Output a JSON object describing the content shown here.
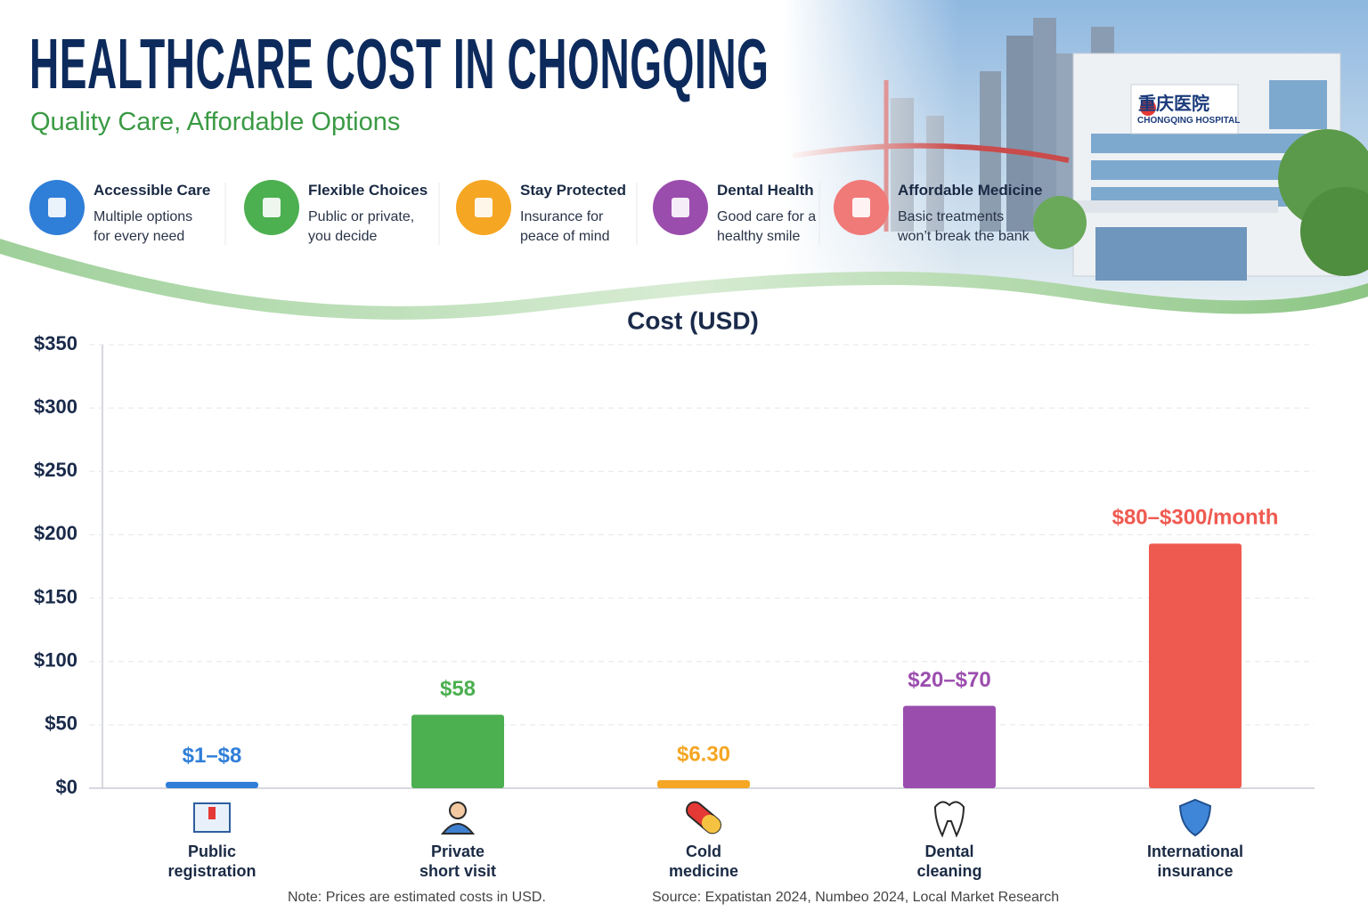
{
  "header": {
    "title": "HEALTHCARE COST IN CHONGQING",
    "subtitle": "Quality Care, Affordable Options"
  },
  "features": [
    {
      "title": "Accessible Care",
      "lines": [
        "Multiple options",
        "for every need"
      ]
    },
    {
      "title": "Flexible Choices",
      "lines": [
        "Public or private,",
        "you decide"
      ]
    },
    {
      "title": "Stay Protected",
      "lines": [
        "Insurance for",
        "peace of mind"
      ]
    },
    {
      "title": "Dental Health",
      "lines": [
        "Good care for a",
        "healthy smile"
      ]
    },
    {
      "title": "Affordable Medicine",
      "lines": [
        "Basic treatments",
        "won’t break the bank"
      ]
    }
  ],
  "illustration": {
    "sign": "重庆医院",
    "sign_subtitle": "CHONGQING HOSPITAL"
  },
  "chart_data": {
    "type": "bar",
    "title": "Cost (USD)",
    "categories": [
      "Public\nregistration",
      "Private\nshort visit",
      "Cold\nmedicine",
      "Dental\ncleaning",
      "International\ninsurance"
    ],
    "values": [
      5,
      58,
      6.3,
      65,
      193
    ],
    "value_labels": [
      "$1–$8",
      "$58",
      "$6.30",
      "$20–$70",
      "$80–$300/month"
    ],
    "colors": [
      "#2f7ed8",
      "#4caf50",
      "#f5a623",
      "#9b4dae",
      "#ef5a50"
    ],
    "ylim": [
      0,
      350
    ],
    "yticks": [
      {
        "value": 0,
        "label": "$0"
      },
      {
        "value": 50,
        "label": "$50"
      },
      {
        "value": 100,
        "label": "$100"
      },
      {
        "value": 150,
        "label": "$150"
      },
      {
        "value": 200,
        "label": "$200"
      },
      {
        "value": 250,
        "label": "$250"
      },
      {
        "value": 300,
        "label": "$300"
      },
      {
        "value": 350,
        "label": "$350"
      }
    ],
    "grid": true
  },
  "footer": {
    "note": "Note: Prices are estimated costs in USD.",
    "source": "Source: Expatistan 2024, Numbeo 2024, Local Market Research"
  }
}
